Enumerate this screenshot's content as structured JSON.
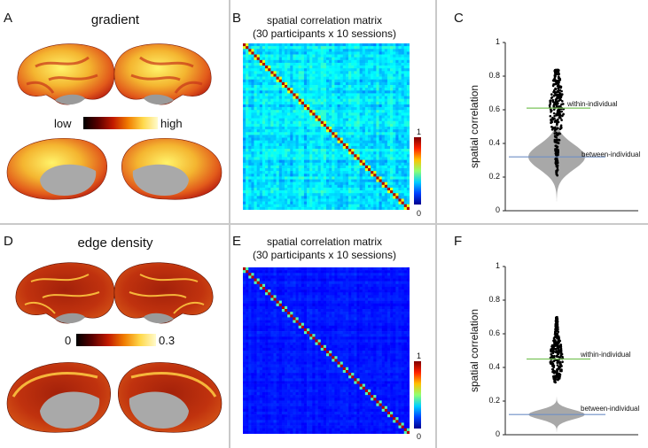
{
  "row1": {
    "brain": {
      "label": "A",
      "title": "gradient",
      "colorbar_low": "low",
      "colorbar_high": "high"
    },
    "matrix": {
      "label": "B",
      "title_line1": "spatial correlation matrix",
      "title_line2": "(30 participants x 10 sessions)",
      "cbar_max": "1",
      "cbar_min": "0"
    },
    "violin": {
      "label": "C",
      "ylabel": "spatial correlation",
      "yticks": [
        "1",
        "0.8",
        "0.6",
        "0.4",
        "0.2",
        "0"
      ],
      "within_label": "within-individual",
      "between_label": "between-individual",
      "within_value": 0.61,
      "between_value": 0.32
    }
  },
  "row2": {
    "brain": {
      "label": "D",
      "title": "edge density",
      "colorbar_low": "0",
      "colorbar_high": "0.3"
    },
    "matrix": {
      "label": "E",
      "title_line1": "spatial correlation matrix",
      "title_line2": "(30 participants x 10 sessions)",
      "cbar_max": "1",
      "cbar_min": "0"
    },
    "violin": {
      "label": "F",
      "ylabel": "spatial correlation",
      "yticks": [
        "1",
        "0.8",
        "0.6",
        "0.4",
        "0.2",
        "0"
      ],
      "within_label": "within-individual",
      "between_label": "between-individual",
      "within_value": 0.45,
      "between_value": 0.12
    }
  },
  "colors": {
    "divider": "#c9c9c9",
    "within_line": "#7ac35a",
    "between_line": "#6f8fc6",
    "violin_gray": "#a8a8a8"
  }
}
